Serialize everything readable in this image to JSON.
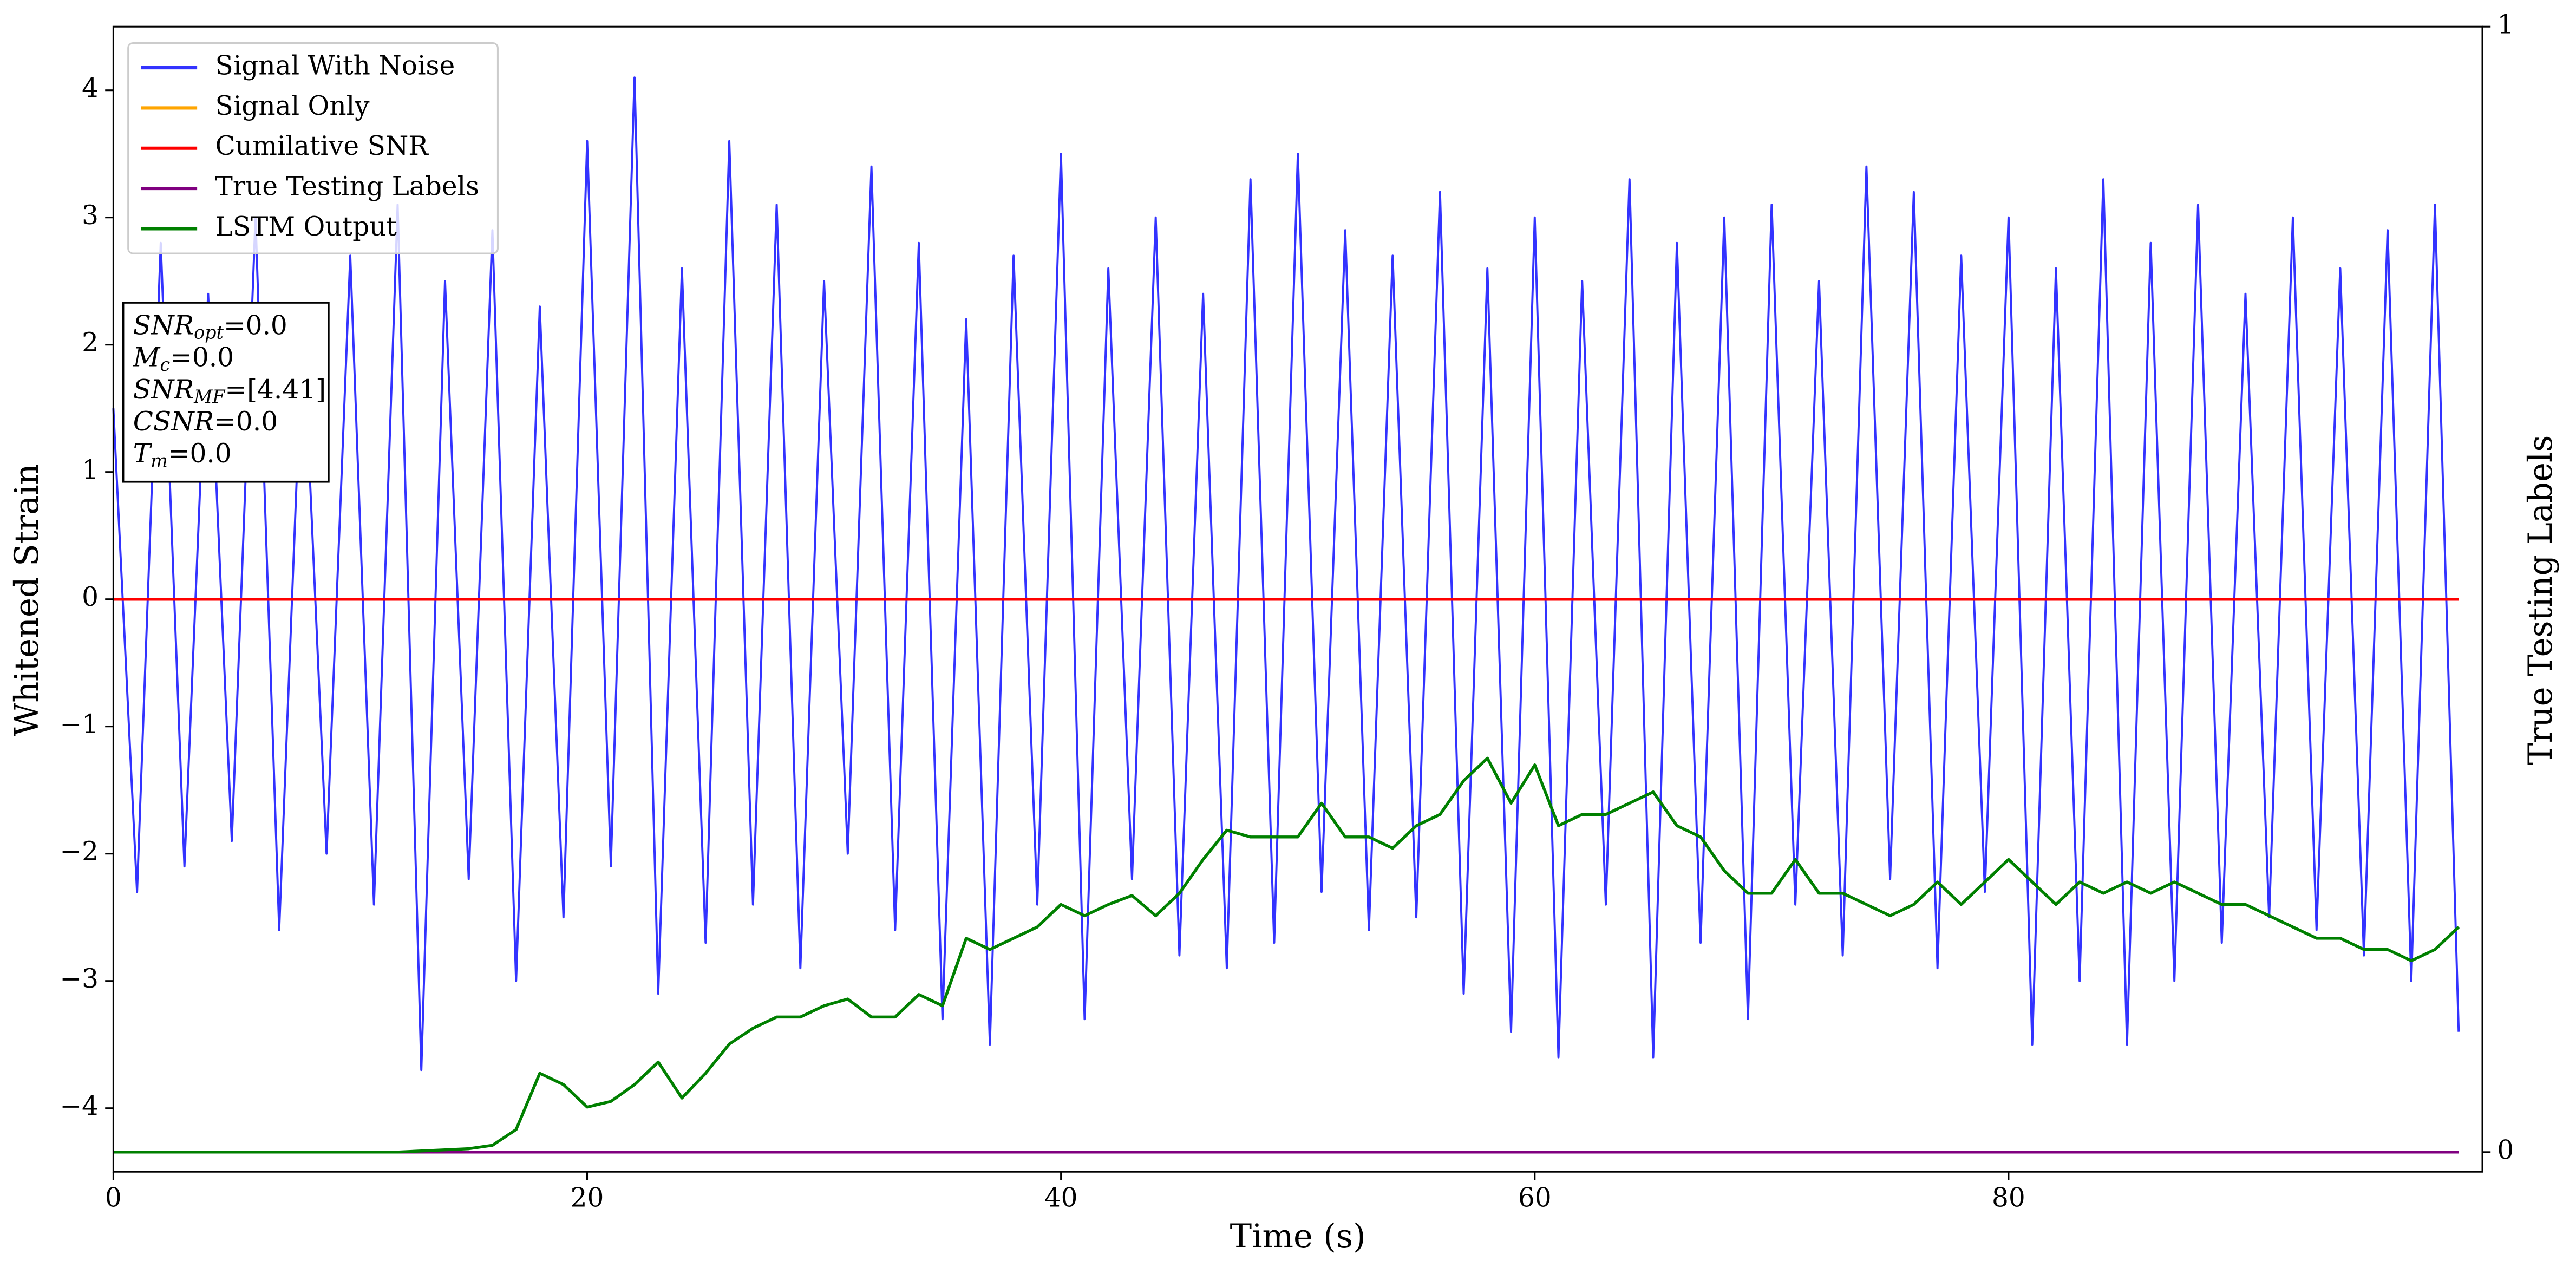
{
  "chart_data": {
    "type": "line",
    "xlabel": "Time (s)",
    "ylabel": "Whitened Strain",
    "y2label": "True Testing Labels",
    "xlim": [
      0,
      100
    ],
    "ylim": [
      -4.5,
      4.5
    ],
    "y2lim": [
      -0.0175,
      1
    ],
    "xticks": [
      0,
      20,
      40,
      60,
      80
    ],
    "yticks": [
      {
        "value": -4,
        "label": "−4"
      },
      {
        "value": -3,
        "label": "−3"
      },
      {
        "value": -2,
        "label": "−2"
      },
      {
        "value": -1,
        "label": "−1"
      },
      0,
      1,
      2,
      3,
      4
    ],
    "y2ticks": [
      0,
      1
    ],
    "legend": "upper left",
    "x": [
      0,
      1,
      2,
      3,
      4,
      5,
      6,
      7,
      8,
      9,
      10,
      11,
      12,
      13,
      14,
      15,
      16,
      17,
      18,
      19,
      20,
      21,
      22,
      23,
      24,
      25,
      26,
      27,
      28,
      29,
      30,
      31,
      32,
      33,
      34,
      35,
      36,
      37,
      38,
      39,
      40,
      41,
      42,
      43,
      44,
      45,
      46,
      47,
      48,
      49,
      50,
      51,
      52,
      53,
      54,
      55,
      56,
      57,
      58,
      59,
      60,
      61,
      62,
      63,
      64,
      65,
      66,
      67,
      68,
      69,
      70,
      71,
      72,
      73,
      74,
      75,
      76,
      77,
      78,
      79,
      80,
      81,
      82,
      83,
      84,
      85,
      86,
      87,
      88,
      89,
      90,
      91,
      92,
      93,
      94,
      95,
      96,
      97,
      98,
      99
    ],
    "series": [
      {
        "name": "Signal With Noise",
        "color": "#3333ff",
        "values": [
          1.5,
          -2.3,
          2.8,
          -2.1,
          2.4,
          -1.9,
          3.0,
          -2.6,
          2.2,
          -2.0,
          2.7,
          -2.4,
          3.1,
          -3.7,
          2.5,
          -2.2,
          2.9,
          -3.0,
          2.3,
          -2.5,
          3.6,
          -2.1,
          4.1,
          -3.1,
          2.6,
          -2.7,
          3.6,
          -2.4,
          3.1,
          -2.9,
          2.5,
          -2.0,
          3.4,
          -2.6,
          2.8,
          -3.3,
          2.2,
          -3.5,
          2.7,
          -2.4,
          3.5,
          -3.3,
          2.6,
          -2.2,
          3.0,
          -2.8,
          2.4,
          -2.9,
          3.3,
          -2.7,
          3.5,
          -2.3,
          2.9,
          -2.6,
          2.7,
          -2.5,
          3.2,
          -3.1,
          2.6,
          -3.4,
          3.0,
          -3.6,
          2.5,
          -2.4,
          3.3,
          -3.6,
          2.8,
          -2.7,
          3.0,
          -3.3,
          3.1,
          -2.4,
          2.5,
          -2.8,
          3.4,
          -2.2,
          3.2,
          -2.9,
          2.7,
          -2.3,
          3.0,
          -3.5,
          2.6,
          -3.0,
          3.3,
          -3.5,
          2.8,
          -3.0,
          3.1,
          -2.7,
          2.4,
          -2.5,
          3.0,
          -2.6,
          2.6,
          -2.8,
          2.9,
          -3.0,
          3.1,
          -3.4
        ]
      },
      {
        "name": "Signal Only",
        "color": "#ffa500",
        "values": [
          0,
          0,
          0,
          0,
          0,
          0,
          0,
          0,
          0,
          0,
          0,
          0,
          0,
          0,
          0,
          0,
          0,
          0,
          0,
          0,
          0,
          0,
          0,
          0,
          0,
          0,
          0,
          0,
          0,
          0,
          0,
          0,
          0,
          0,
          0,
          0,
          0,
          0,
          0,
          0,
          0,
          0,
          0,
          0,
          0,
          0,
          0,
          0,
          0,
          0,
          0,
          0,
          0,
          0,
          0,
          0,
          0,
          0,
          0,
          0,
          0,
          0,
          0,
          0,
          0,
          0,
          0,
          0,
          0,
          0,
          0,
          0,
          0,
          0,
          0,
          0,
          0,
          0,
          0,
          0,
          0,
          0,
          0,
          0,
          0,
          0,
          0,
          0,
          0,
          0,
          0,
          0,
          0,
          0,
          0,
          0,
          0,
          0,
          0,
          0
        ]
      },
      {
        "name": "Cumilative SNR",
        "color": "#ff0000",
        "values": [
          0,
          0,
          0,
          0,
          0,
          0,
          0,
          0,
          0,
          0,
          0,
          0,
          0,
          0,
          0,
          0,
          0,
          0,
          0,
          0,
          0,
          0,
          0,
          0,
          0,
          0,
          0,
          0,
          0,
          0,
          0,
          0,
          0,
          0,
          0,
          0,
          0,
          0,
          0,
          0,
          0,
          0,
          0,
          0,
          0,
          0,
          0,
          0,
          0,
          0,
          0,
          0,
          0,
          0,
          0,
          0,
          0,
          0,
          0,
          0,
          0,
          0,
          0,
          0,
          0,
          0,
          0,
          0,
          0,
          0,
          0,
          0,
          0,
          0,
          0,
          0,
          0,
          0,
          0,
          0,
          0,
          0,
          0,
          0,
          0,
          0,
          0,
          0,
          0,
          0,
          0,
          0,
          0,
          0,
          0,
          0,
          0,
          0,
          0,
          0
        ]
      },
      {
        "name": "True Testing Labels",
        "color": "#800080",
        "axis": "y2",
        "values": [
          0,
          0,
          0,
          0,
          0,
          0,
          0,
          0,
          0,
          0,
          0,
          0,
          0,
          0,
          0,
          0,
          0,
          0,
          0,
          0,
          0,
          0,
          0,
          0,
          0,
          0,
          0,
          0,
          0,
          0,
          0,
          0,
          0,
          0,
          0,
          0,
          0,
          0,
          0,
          0,
          0,
          0,
          0,
          0,
          0,
          0,
          0,
          0,
          0,
          0,
          0,
          0,
          0,
          0,
          0,
          0,
          0,
          0,
          0,
          0,
          0,
          0,
          0,
          0,
          0,
          0,
          0,
          0,
          0,
          0,
          0,
          0,
          0,
          0,
          0,
          0,
          0,
          0,
          0,
          0,
          0,
          0,
          0,
          0,
          0,
          0,
          0,
          0,
          0,
          0,
          0,
          0,
          0,
          0,
          0,
          0,
          0,
          0,
          0,
          0
        ]
      },
      {
        "name": "LSTM Output",
        "color": "#008000",
        "axis": "y2",
        "values": [
          0,
          0,
          0,
          0,
          0,
          0,
          0,
          0,
          0,
          0,
          0,
          0,
          0,
          0.001,
          0.002,
          0.003,
          0.006,
          0.02,
          0.07,
          0.06,
          0.04,
          0.045,
          0.06,
          0.08,
          0.048,
          0.07,
          0.096,
          0.11,
          0.12,
          0.12,
          0.13,
          0.136,
          0.12,
          0.12,
          0.14,
          0.13,
          0.19,
          0.18,
          0.19,
          0.2,
          0.22,
          0.21,
          0.22,
          0.228,
          0.21,
          0.23,
          0.26,
          0.286,
          0.28,
          0.28,
          0.28,
          0.31,
          0.28,
          0.28,
          0.27,
          0.29,
          0.3,
          0.33,
          0.35,
          0.31,
          0.344,
          0.29,
          0.3,
          0.3,
          0.31,
          0.32,
          0.29,
          0.28,
          0.25,
          0.23,
          0.23,
          0.26,
          0.23,
          0.23,
          0.22,
          0.21,
          0.22,
          0.24,
          0.22,
          0.24,
          0.26,
          0.24,
          0.22,
          0.24,
          0.23,
          0.24,
          0.23,
          0.24,
          0.23,
          0.22,
          0.22,
          0.21,
          0.2,
          0.19,
          0.19,
          0.18,
          0.18,
          0.17,
          0.18,
          0.2
        ]
      }
    ],
    "annotations": [
      {
        "symbol": "SNR",
        "sub": "opt",
        "text": "=0.0"
      },
      {
        "symbol": "M",
        "sub": "c",
        "text": "=0.0"
      },
      {
        "symbol": "SNR",
        "sub": "MF",
        "text": "=[4.41]"
      },
      {
        "symbol": "CSNR",
        "text": "=0.0"
      },
      {
        "symbol": "T",
        "sub": "m",
        "text": "=0.0"
      }
    ]
  }
}
